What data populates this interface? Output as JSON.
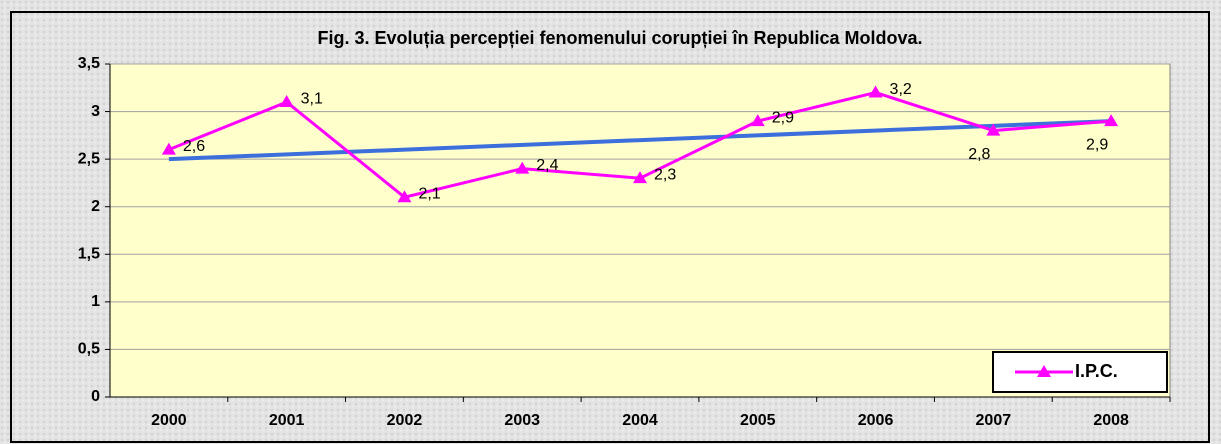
{
  "chart_data": {
    "type": "line",
    "title": "Fig. 3. Evoluția percepției fenomenului corupției în Republica Moldova.",
    "categories": [
      "2000",
      "2001",
      "2002",
      "2003",
      "2004",
      "2005",
      "2006",
      "2007",
      "2008"
    ],
    "series": [
      {
        "name": "I.P.C.",
        "color": "#ff00ff",
        "values": [
          2.6,
          3.1,
          2.1,
          2.4,
          2.3,
          2.9,
          3.2,
          2.8,
          2.9
        ],
        "value_labels": [
          "2,6",
          "3,1",
          "2,1",
          "2,4",
          "2,3",
          "2,9",
          "3,2",
          "2,8",
          "2,9"
        ]
      }
    ],
    "trendline": {
      "type": "linear",
      "color": "#3c6fdc"
    },
    "ylim": [
      0,
      3.5
    ],
    "yticks": [
      0,
      {
        "value": 0.5,
        "label": "0,5"
      },
      1,
      {
        "value": 1.5,
        "label": "1,5"
      },
      2,
      {
        "value": 2.5,
        "label": "2,5"
      },
      3,
      {
        "value": 3.5,
        "label": "3,5"
      }
    ],
    "grid": true,
    "legend": "bottom-right"
  }
}
